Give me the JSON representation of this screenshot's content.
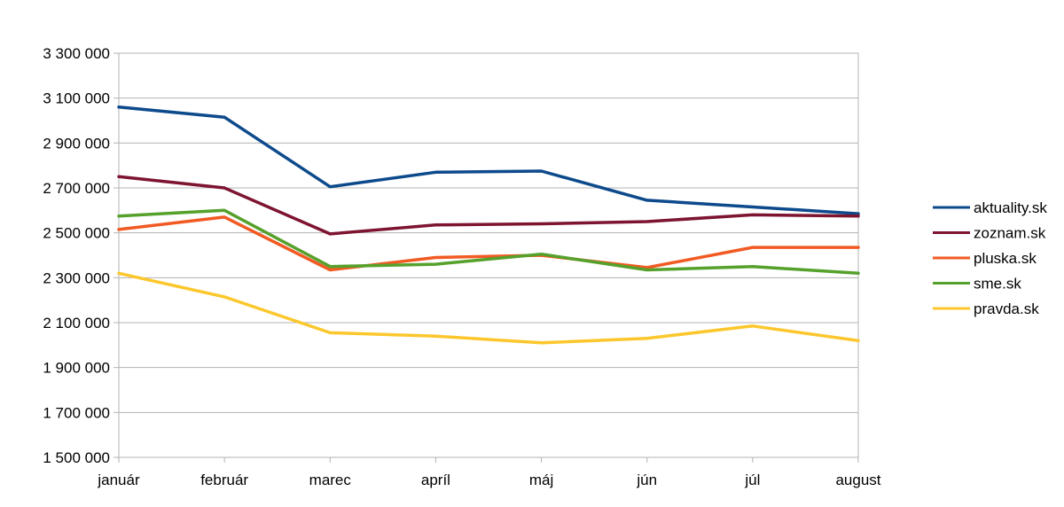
{
  "chart_data": {
    "type": "line",
    "categories": [
      "január",
      "február",
      "marec",
      "apríl",
      "máj",
      "jún",
      "júl",
      "august"
    ],
    "ylim": [
      1500000,
      3300000
    ],
    "yticks": [
      1500000,
      1700000,
      1900000,
      2100000,
      2300000,
      2500000,
      2700000,
      2900000,
      3100000,
      3300000
    ],
    "ytick_labels": [
      "1 500 000",
      "1 700 000",
      "1 900 000",
      "2 100 000",
      "2 300 000",
      "2 500 000",
      "2 700 000",
      "2 900 000",
      "3 100 000",
      "3 300 000"
    ],
    "grid": true,
    "legend_position": "right",
    "series": [
      {
        "name": "aktuality.sk",
        "color": "#0d4a8c",
        "values": [
          3060000,
          3015000,
          2705000,
          2770000,
          2775000,
          2645000,
          2615000,
          2585000
        ]
      },
      {
        "name": "zoznam.sk",
        "color": "#7d1430",
        "values": [
          2750000,
          2700000,
          2495000,
          2535000,
          2540000,
          2550000,
          2580000,
          2575000
        ]
      },
      {
        "name": "pluska.sk",
        "color": "#f25a23",
        "values": [
          2515000,
          2570000,
          2335000,
          2390000,
          2400000,
          2345000,
          2435000,
          2435000
        ]
      },
      {
        "name": "sme.sk",
        "color": "#55a12c",
        "values": [
          2575000,
          2600000,
          2350000,
          2360000,
          2405000,
          2335000,
          2350000,
          2320000
        ]
      },
      {
        "name": "pravda.sk",
        "color": "#fcc72c",
        "values": [
          2320000,
          2215000,
          2055000,
          2040000,
          2010000,
          2030000,
          2085000,
          2020000
        ]
      }
    ]
  }
}
